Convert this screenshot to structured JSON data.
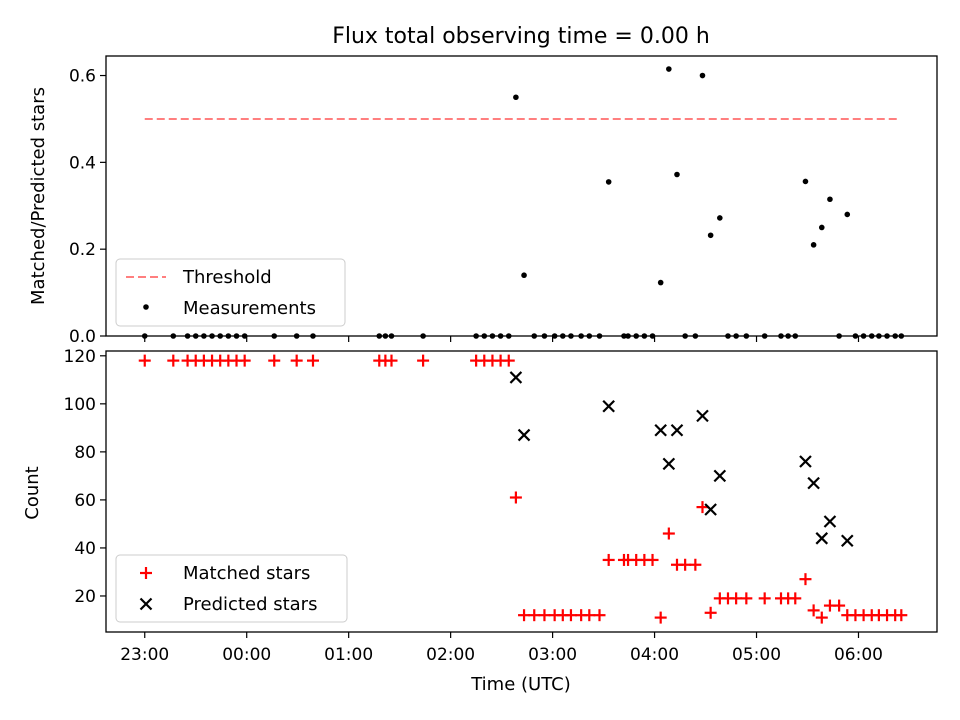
{
  "chart_data": {
    "type": "scatter",
    "title": "Flux total observing time = 0.00 h",
    "xlabel": "Time (UTC)",
    "x_unit": "hours relative to 00:00 UTC",
    "x_ticks": [
      {
        "value": -1,
        "label": "23:00"
      },
      {
        "value": 0,
        "label": "00:00"
      },
      {
        "value": 1,
        "label": "01:00"
      },
      {
        "value": 2,
        "label": "02:00"
      },
      {
        "value": 3,
        "label": "03:00"
      },
      {
        "value": 4,
        "label": "04:00"
      },
      {
        "value": 5,
        "label": "05:00"
      },
      {
        "value": 6,
        "label": "06:00"
      }
    ],
    "xlim": [
      -1.38,
      6.77
    ],
    "colors": {
      "threshold": "#ff7f7f",
      "measurements": "#000000",
      "matched": "#ff0000",
      "predicted": "#000000"
    },
    "top": {
      "ylabel": "Matched/Predicted stars",
      "ylim": [
        0,
        0.645
      ],
      "y_ticks": [
        {
          "value": 0,
          "label": "0.0"
        },
        {
          "value": 0.2,
          "label": "0.2"
        },
        {
          "value": 0.4,
          "label": "0.4"
        },
        {
          "value": 0.6,
          "label": "0.6"
        }
      ],
      "threshold": {
        "name": "Threshold",
        "value": 0.5,
        "x_range": [
          -1.0,
          6.4
        ]
      },
      "measurements_name": "Measurements",
      "measurements": [
        [
          -1.0,
          0
        ],
        [
          -0.72,
          0
        ],
        [
          -0.58,
          0
        ],
        [
          -0.5,
          0
        ],
        [
          -0.42,
          0
        ],
        [
          -0.34,
          0
        ],
        [
          -0.26,
          0
        ],
        [
          -0.18,
          0
        ],
        [
          -0.1,
          0
        ],
        [
          -0.02,
          0
        ],
        [
          0.27,
          0
        ],
        [
          0.49,
          0
        ],
        [
          0.65,
          0
        ],
        [
          1.3,
          0
        ],
        [
          1.36,
          0
        ],
        [
          1.42,
          0
        ],
        [
          1.73,
          0
        ],
        [
          2.25,
          0
        ],
        [
          2.33,
          0
        ],
        [
          2.41,
          0
        ],
        [
          2.49,
          0
        ],
        [
          2.57,
          0
        ],
        [
          2.64,
          0.55
        ],
        [
          2.72,
          0.14
        ],
        [
          2.82,
          0
        ],
        [
          2.92,
          0
        ],
        [
          3.02,
          0
        ],
        [
          3.1,
          0
        ],
        [
          3.18,
          0
        ],
        [
          3.28,
          0
        ],
        [
          3.36,
          0
        ],
        [
          3.46,
          0
        ],
        [
          3.55,
          0.355
        ],
        [
          3.7,
          0
        ],
        [
          3.74,
          0
        ],
        [
          3.82,
          0
        ],
        [
          3.9,
          0
        ],
        [
          3.98,
          0
        ],
        [
          4.06,
          0.123
        ],
        [
          4.14,
          0.615
        ],
        [
          4.22,
          0.372
        ],
        [
          4.3,
          0
        ],
        [
          4.4,
          0
        ],
        [
          4.47,
          0.6
        ],
        [
          4.55,
          0.232
        ],
        [
          4.64,
          0.272
        ],
        [
          4.72,
          0
        ],
        [
          4.8,
          0
        ],
        [
          4.9,
          0
        ],
        [
          5.08,
          0
        ],
        [
          5.24,
          0
        ],
        [
          5.31,
          0
        ],
        [
          5.38,
          0
        ],
        [
          5.48,
          0.356
        ],
        [
          5.56,
          0.21
        ],
        [
          5.64,
          0.25
        ],
        [
          5.72,
          0.315
        ],
        [
          5.81,
          0
        ],
        [
          5.89,
          0.28
        ],
        [
          5.97,
          0
        ],
        [
          6.05,
          0
        ],
        [
          6.13,
          0
        ],
        [
          6.2,
          0
        ],
        [
          6.28,
          0
        ],
        [
          6.36,
          0
        ],
        [
          6.42,
          0
        ]
      ]
    },
    "bottom": {
      "ylabel": "Count",
      "ylim": [
        5,
        122
      ],
      "y_ticks": [
        {
          "value": 20,
          "label": "20"
        },
        {
          "value": 40,
          "label": "40"
        },
        {
          "value": 60,
          "label": "60"
        },
        {
          "value": 80,
          "label": "80"
        },
        {
          "value": 100,
          "label": "100"
        },
        {
          "value": 120,
          "label": "120"
        }
      ],
      "series": [
        {
          "name": "Matched stars",
          "marker": "plus",
          "points": [
            [
              -1.0,
              118
            ],
            [
              -0.72,
              118
            ],
            [
              -0.58,
              118
            ],
            [
              -0.5,
              118
            ],
            [
              -0.42,
              118
            ],
            [
              -0.34,
              118
            ],
            [
              -0.26,
              118
            ],
            [
              -0.18,
              118
            ],
            [
              -0.1,
              118
            ],
            [
              -0.02,
              118
            ],
            [
              0.27,
              118
            ],
            [
              0.49,
              118
            ],
            [
              0.65,
              118
            ],
            [
              1.3,
              118
            ],
            [
              1.36,
              118
            ],
            [
              1.42,
              118
            ],
            [
              1.73,
              118
            ],
            [
              2.25,
              118
            ],
            [
              2.33,
              118
            ],
            [
              2.41,
              118
            ],
            [
              2.49,
              118
            ],
            [
              2.57,
              118
            ],
            [
              2.64,
              61
            ],
            [
              2.72,
              12
            ],
            [
              2.82,
              12
            ],
            [
              2.92,
              12
            ],
            [
              3.02,
              12
            ],
            [
              3.1,
              12
            ],
            [
              3.18,
              12
            ],
            [
              3.28,
              12
            ],
            [
              3.36,
              12
            ],
            [
              3.46,
              12
            ],
            [
              3.55,
              35
            ],
            [
              3.7,
              35
            ],
            [
              3.74,
              35
            ],
            [
              3.82,
              35
            ],
            [
              3.9,
              35
            ],
            [
              3.98,
              35
            ],
            [
              4.06,
              11
            ],
            [
              4.14,
              46
            ],
            [
              4.22,
              33
            ],
            [
              4.3,
              33
            ],
            [
              4.4,
              33
            ],
            [
              4.47,
              57
            ],
            [
              4.55,
              13
            ],
            [
              4.64,
              19
            ],
            [
              4.72,
              19
            ],
            [
              4.8,
              19
            ],
            [
              4.9,
              19
            ],
            [
              5.08,
              19
            ],
            [
              5.24,
              19
            ],
            [
              5.31,
              19
            ],
            [
              5.38,
              19
            ],
            [
              5.48,
              27
            ],
            [
              5.56,
              14
            ],
            [
              5.64,
              11
            ],
            [
              5.72,
              16
            ],
            [
              5.81,
              16
            ],
            [
              5.89,
              12
            ],
            [
              5.97,
              12
            ],
            [
              6.05,
              12
            ],
            [
              6.13,
              12
            ],
            [
              6.2,
              12
            ],
            [
              6.28,
              12
            ],
            [
              6.36,
              12
            ],
            [
              6.42,
              12
            ]
          ]
        },
        {
          "name": "Predicted stars",
          "marker": "x",
          "points": [
            [
              2.64,
              111
            ],
            [
              2.72,
              87
            ],
            [
              3.55,
              99
            ],
            [
              4.06,
              89
            ],
            [
              4.14,
              75
            ],
            [
              4.22,
              89
            ],
            [
              4.47,
              95
            ],
            [
              4.55,
              56
            ],
            [
              4.64,
              70
            ],
            [
              5.48,
              76
            ],
            [
              5.56,
              67
            ],
            [
              5.64,
              44
            ],
            [
              5.72,
              51
            ],
            [
              5.89,
              43
            ]
          ]
        }
      ]
    },
    "legend_top_position": "lower-left",
    "legend_bottom_position": "lower-left"
  }
}
